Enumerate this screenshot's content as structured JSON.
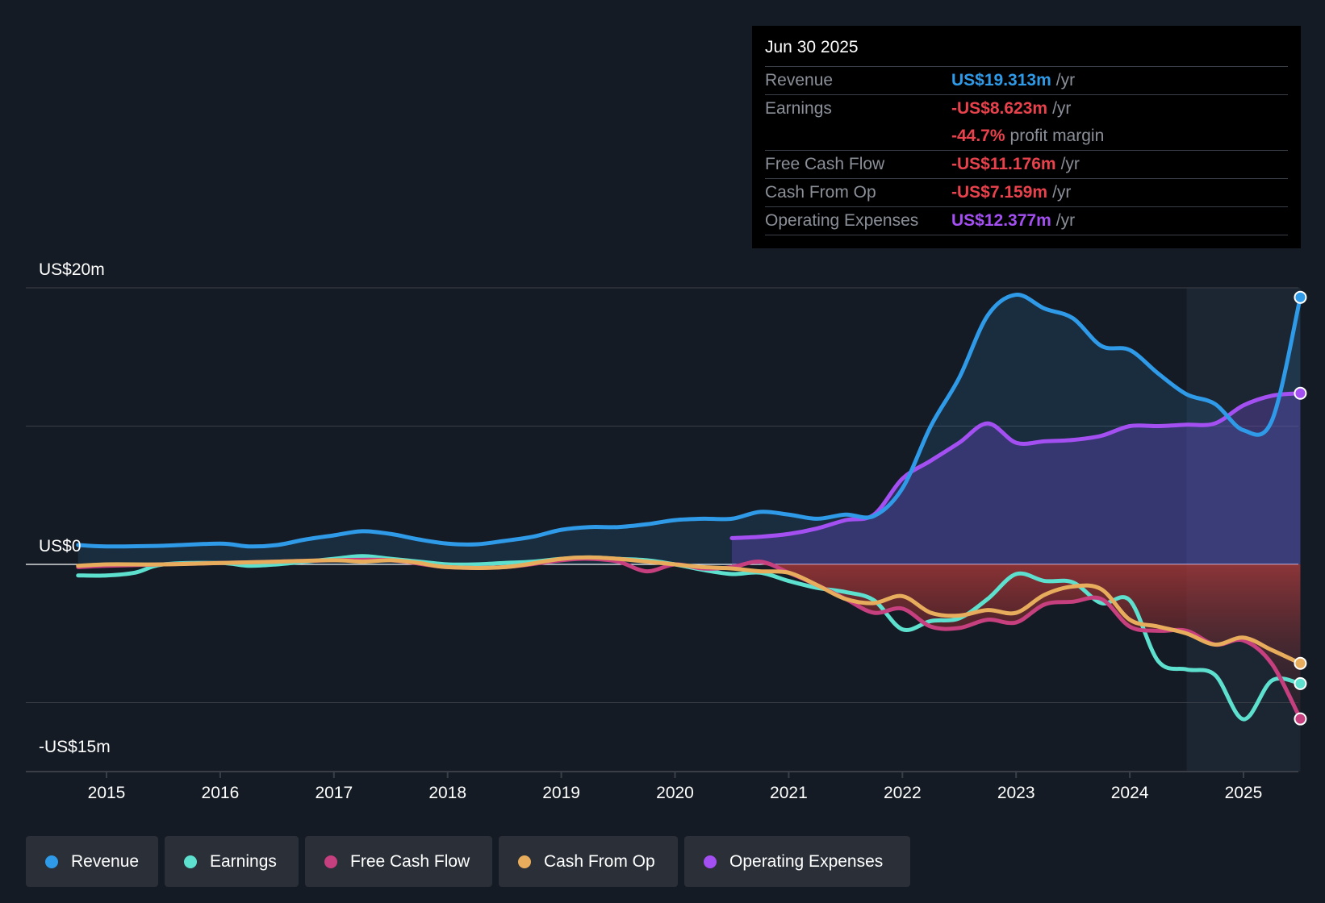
{
  "tooltip": {
    "date": "Jun 30 2025",
    "rows": [
      {
        "label": "Revenue",
        "value": "US$19.313m",
        "unit": "/yr",
        "color": "#2f9ae8"
      },
      {
        "label": "Earnings",
        "value": "-US$8.623m",
        "unit": "/yr",
        "color": "#e8424d"
      },
      {
        "label": "",
        "value": "-44.7%",
        "unit": "profit margin",
        "color": "#e8424d"
      },
      {
        "label": "Free Cash Flow",
        "value": "-US$11.176m",
        "unit": "/yr",
        "color": "#e8424d"
      },
      {
        "label": "Cash From Op",
        "value": "-US$7.159m",
        "unit": "/yr",
        "color": "#e8424d"
      },
      {
        "label": "Operating Expenses",
        "value": "US$12.377m",
        "unit": "/yr",
        "color": "#a44ff2"
      }
    ]
  },
  "legend": [
    {
      "label": "Revenue",
      "color": "#2f9ae8"
    },
    {
      "label": "Earnings",
      "color": "#5ee0cf"
    },
    {
      "label": "Free Cash Flow",
      "color": "#c63f7e"
    },
    {
      "label": "Cash From Op",
      "color": "#e8ad5c"
    },
    {
      "label": "Operating Expenses",
      "color": "#a44ff2"
    }
  ],
  "chart_data": {
    "type": "line",
    "title": "",
    "ylim": [
      -15,
      20
    ],
    "y_labels": [
      {
        "label": "US$20m",
        "value": 20
      },
      {
        "label": "US$0",
        "value": 0
      },
      {
        "label": "-US$15m",
        "value": -15
      }
    ],
    "gridlines": [
      20,
      10,
      0,
      -10
    ],
    "xlim": [
      2014.3,
      2025.5
    ],
    "x_ticks": [
      {
        "label": "2015",
        "value": 2015
      },
      {
        "label": "2016",
        "value": 2016
      },
      {
        "label": "2017",
        "value": 2017
      },
      {
        "label": "2018",
        "value": 2018
      },
      {
        "label": "2019",
        "value": 2019
      },
      {
        "label": "2020",
        "value": 2020
      },
      {
        "label": "2021",
        "value": 2021
      },
      {
        "label": "2022",
        "value": 2022
      },
      {
        "label": "2023",
        "value": 2023
      },
      {
        "label": "2024",
        "value": 2024
      },
      {
        "label": "2025",
        "value": 2025
      }
    ],
    "highlight_range": [
      2024.5,
      2025.5
    ],
    "series": [
      {
        "name": "Revenue",
        "color": "#2f9ae8",
        "x": [
          2014.75,
          2015.0,
          2015.5,
          2016.0,
          2016.25,
          2016.5,
          2016.75,
          2017.0,
          2017.25,
          2017.5,
          2017.75,
          2018.0,
          2018.25,
          2018.5,
          2018.75,
          2019.0,
          2019.25,
          2019.5,
          2019.75,
          2020.0,
          2020.25,
          2020.5,
          2020.75,
          2021.0,
          2021.25,
          2021.5,
          2021.75,
          2022.0,
          2022.25,
          2022.5,
          2022.75,
          2023.0,
          2023.25,
          2023.5,
          2023.75,
          2024.0,
          2024.25,
          2024.5,
          2024.75,
          2025.0,
          2025.25,
          2025.5
        ],
        "y": [
          1.4,
          1.3,
          1.35,
          1.5,
          1.3,
          1.4,
          1.8,
          2.1,
          2.4,
          2.2,
          1.8,
          1.5,
          1.45,
          1.7,
          2.0,
          2.5,
          2.7,
          2.7,
          2.9,
          3.2,
          3.3,
          3.3,
          3.8,
          3.6,
          3.3,
          3.6,
          3.5,
          5.5,
          10.0,
          13.5,
          18.0,
          19.5,
          18.5,
          17.8,
          15.8,
          15.5,
          13.8,
          12.3,
          11.6,
          9.7,
          10.4,
          19.313
        ]
      },
      {
        "name": "Earnings",
        "color": "#5ee0cf",
        "x": [
          2014.75,
          2015.0,
          2015.25,
          2015.5,
          2016.0,
          2016.25,
          2016.5,
          2016.75,
          2017.0,
          2017.25,
          2017.5,
          2017.75,
          2018.0,
          2018.25,
          2018.5,
          2018.75,
          2019.0,
          2019.25,
          2019.5,
          2019.75,
          2020.0,
          2020.25,
          2020.5,
          2020.75,
          2021.0,
          2021.25,
          2021.5,
          2021.75,
          2022.0,
          2022.25,
          2022.5,
          2022.75,
          2023.0,
          2023.25,
          2023.5,
          2023.75,
          2024.0,
          2024.25,
          2024.5,
          2024.75,
          2025.0,
          2025.25,
          2025.5
        ],
        "y": [
          -0.8,
          -0.8,
          -0.6,
          0.0,
          0.1,
          -0.1,
          0.0,
          0.2,
          0.4,
          0.6,
          0.4,
          0.2,
          0.0,
          0.0,
          0.1,
          0.2,
          0.4,
          0.5,
          0.4,
          0.3,
          0.0,
          -0.4,
          -0.7,
          -0.6,
          -1.2,
          -1.7,
          -2.0,
          -2.6,
          -4.7,
          -4.1,
          -3.9,
          -2.5,
          -0.7,
          -1.2,
          -1.3,
          -2.8,
          -2.6,
          -7.0,
          -7.6,
          -8.0,
          -11.2,
          -8.4,
          -8.623
        ]
      },
      {
        "name": "Free Cash Flow",
        "color": "#c63f7e",
        "x": [
          2014.75,
          2015.0,
          2015.5,
          2016.0,
          2016.5,
          2017.0,
          2017.5,
          2018.0,
          2018.5,
          2019.0,
          2019.25,
          2019.5,
          2019.75,
          2020.0,
          2020.25,
          2020.5,
          2020.75,
          2021.0,
          2021.25,
          2021.5,
          2021.75,
          2022.0,
          2022.25,
          2022.5,
          2022.75,
          2023.0,
          2023.25,
          2023.5,
          2023.75,
          2024.0,
          2024.25,
          2024.5,
          2024.75,
          2025.0,
          2025.25,
          2025.5
        ],
        "y": [
          -0.2,
          -0.1,
          0.0,
          0.1,
          0.2,
          0.3,
          0.3,
          -0.2,
          -0.2,
          0.3,
          0.4,
          0.2,
          -0.5,
          0.0,
          -0.3,
          -0.2,
          0.2,
          -0.6,
          -1.5,
          -2.5,
          -3.5,
          -3.2,
          -4.5,
          -4.6,
          -4.0,
          -4.2,
          -2.9,
          -2.7,
          -2.5,
          -4.5,
          -4.8,
          -4.8,
          -5.8,
          -5.5,
          -7.2,
          -11.176
        ]
      },
      {
        "name": "Cash From Op",
        "color": "#e8ad5c",
        "x": [
          2014.75,
          2015.0,
          2015.5,
          2016.0,
          2016.5,
          2017.0,
          2017.25,
          2017.5,
          2017.75,
          2018.0,
          2018.5,
          2019.0,
          2019.25,
          2019.5,
          2019.75,
          2020.0,
          2020.25,
          2020.5,
          2020.75,
          2021.0,
          2021.25,
          2021.5,
          2021.75,
          2022.0,
          2022.25,
          2022.5,
          2022.75,
          2023.0,
          2023.25,
          2023.5,
          2023.75,
          2024.0,
          2024.25,
          2024.5,
          2024.75,
          2025.0,
          2025.25,
          2025.5
        ],
        "y": [
          -0.1,
          0.0,
          0.0,
          0.1,
          0.2,
          0.3,
          0.2,
          0.3,
          0.1,
          -0.2,
          -0.2,
          0.4,
          0.5,
          0.4,
          0.2,
          0.0,
          -0.2,
          -0.3,
          -0.5,
          -0.6,
          -1.5,
          -2.5,
          -2.8,
          -2.3,
          -3.5,
          -3.7,
          -3.3,
          -3.5,
          -2.2,
          -1.6,
          -1.8,
          -4.0,
          -4.5,
          -5.0,
          -5.8,
          -5.3,
          -6.2,
          -7.159
        ]
      },
      {
        "name": "Operating Expenses",
        "color": "#a44ff2",
        "x": [
          2020.5,
          2020.75,
          2021.0,
          2021.25,
          2021.5,
          2021.75,
          2022.0,
          2022.25,
          2022.5,
          2022.75,
          2023.0,
          2023.25,
          2023.5,
          2023.75,
          2024.0,
          2024.25,
          2024.5,
          2024.75,
          2025.0,
          2025.25,
          2025.5
        ],
        "y": [
          1.9,
          2.0,
          2.2,
          2.6,
          3.2,
          3.6,
          6.2,
          7.5,
          8.8,
          10.2,
          8.8,
          8.9,
          9.0,
          9.3,
          10.0,
          10.0,
          10.1,
          10.2,
          11.5,
          12.2,
          12.377
        ]
      }
    ]
  }
}
